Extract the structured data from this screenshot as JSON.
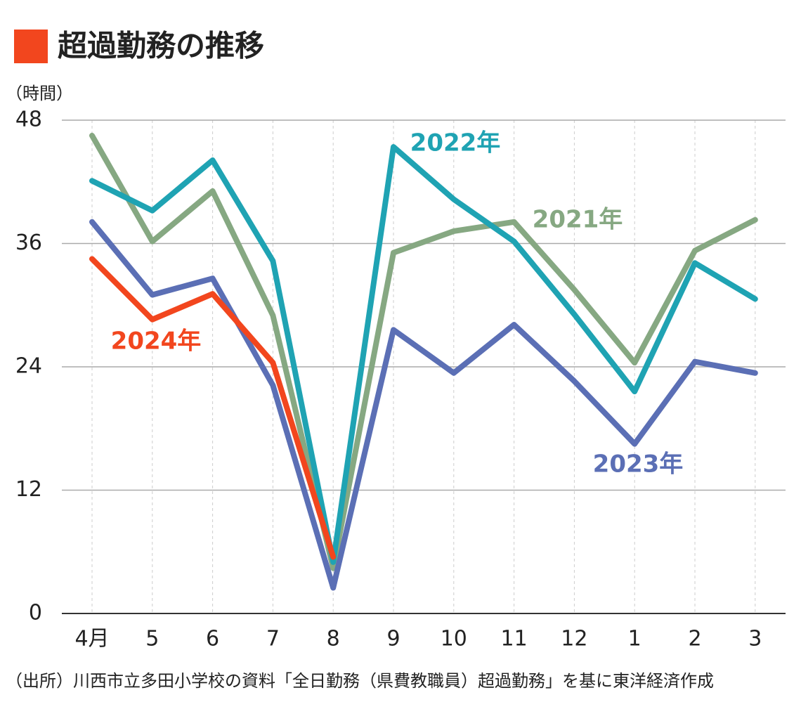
{
  "chart_data": {
    "type": "line",
    "title": "超過勤務の推移",
    "y_label": "（時間）",
    "source": "（出所）川西市立多田小学校の資料「全日勤務（県費教職員）超過勤務」を基に東洋経済作成",
    "categories": [
      "4月",
      "5",
      "6",
      "7",
      "8",
      "9",
      "10",
      "11",
      "12",
      "1",
      "2",
      "3"
    ],
    "series": [
      {
        "name": "2021年",
        "color": "#86a882",
        "values": [
          46.5,
          36.2,
          41.1,
          29.0,
          4.4,
          35.1,
          37.2,
          38.1,
          31.5,
          24.4,
          35.3,
          38.3
        ]
      },
      {
        "name": "2022年",
        "color": "#1fa3b3",
        "values": [
          42.1,
          39.2,
          44.1,
          34.3,
          5.0,
          45.4,
          40.3,
          36.2,
          29.1,
          21.6,
          34.1,
          30.6
        ]
      },
      {
        "name": "2023年",
        "color": "#5b6fb5",
        "values": [
          38.1,
          31.0,
          32.6,
          22.2,
          2.5,
          27.6,
          23.4,
          28.1,
          22.6,
          16.5,
          24.5,
          23.4
        ]
      },
      {
        "name": "2024年",
        "color": "#f2461e",
        "values": [
          34.5,
          28.6,
          31.1,
          24.4,
          5.5,
          null,
          null,
          null,
          null,
          null,
          null,
          null
        ]
      }
    ],
    "ylim": [
      0,
      48
    ],
    "yticks": [
      0,
      12,
      24,
      36,
      48
    ],
    "grid": true
  }
}
